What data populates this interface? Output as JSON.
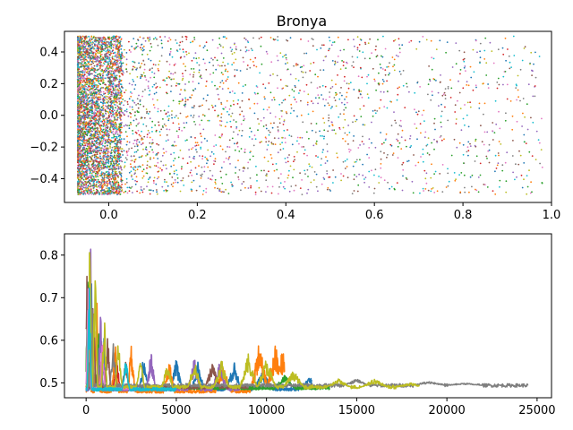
{
  "chart_data": [
    {
      "type": "scatter",
      "title": "Bronya",
      "xlabel": "",
      "ylabel": "",
      "xlim": [
        -0.1,
        1.0
      ],
      "ylim": [
        -0.55,
        0.53
      ],
      "xticks": [
        "0.0",
        "0.2",
        "0.4",
        "0.6",
        "0.8",
        "1.0"
      ],
      "xtick_values": [
        0.0,
        0.2,
        0.4,
        0.6,
        0.8,
        1.0
      ],
      "yticks": [
        "−0.4",
        "−0.2",
        "0.0",
        "0.2",
        "0.4"
      ],
      "ytick_values": [
        -0.4,
        -0.2,
        0.0,
        0.2,
        0.4
      ],
      "grid": false,
      "series_colors": [
        "#1f77b4",
        "#ff7f0e",
        "#2ca02c",
        "#d62728",
        "#9467bd",
        "#8c564b",
        "#e377c2",
        "#7f7f7f",
        "#bcbd22",
        "#17becf"
      ],
      "point_y_range": [
        -0.5,
        0.5
      ],
      "dense_band_x": [
        -0.07,
        0.03
      ],
      "max_x": 0.98,
      "approx_point_count": 6000
    },
    {
      "type": "line",
      "title": "",
      "xlabel": "",
      "ylabel": "",
      "xlim": [
        -1200,
        25800
      ],
      "ylim": [
        0.465,
        0.85
      ],
      "xticks": [
        "0",
        "5000",
        "10000",
        "15000",
        "20000",
        "25000"
      ],
      "xtick_values": [
        0,
        5000,
        10000,
        15000,
        20000,
        25000
      ],
      "yticks": [
        "0.5",
        "0.6",
        "0.7",
        "0.8"
      ],
      "ytick_values": [
        0.5,
        0.6,
        0.7,
        0.8
      ],
      "grid": false,
      "series": [
        {
          "color": "#1f77b4",
          "length": 12500,
          "baseline": 0.485,
          "spikes": [
            [
              300,
              0.78
            ],
            [
              1000,
              0.62
            ],
            [
              3200,
              0.57
            ],
            [
              5000,
              0.56
            ],
            [
              6200,
              0.55
            ],
            [
              8200,
              0.55
            ],
            [
              9800,
              0.53
            ],
            [
              12400,
              0.52
            ]
          ]
        },
        {
          "color": "#ff7f0e",
          "length": 11000,
          "baseline": 0.48,
          "spikes": [
            [
              150,
              0.82
            ],
            [
              600,
              0.7
            ],
            [
              1600,
              0.61
            ],
            [
              2500,
              0.59
            ],
            [
              4600,
              0.56
            ],
            [
              7600,
              0.55
            ],
            [
              9600,
              0.6
            ],
            [
              10500,
              0.59
            ],
            [
              10900,
              0.58
            ]
          ]
        },
        {
          "color": "#2ca02c",
          "length": 13500,
          "baseline": 0.488,
          "spikes": [
            [
              100,
              0.8
            ],
            [
              700,
              0.62
            ],
            [
              11000,
              0.52
            ]
          ]
        },
        {
          "color": "#d62728",
          "length": 4000,
          "baseline": 0.49,
          "spikes": [
            [
              200,
              0.79
            ],
            [
              1700,
              0.56
            ]
          ]
        },
        {
          "color": "#9467bd",
          "length": 8500,
          "baseline": 0.485,
          "spikes": [
            [
              250,
              0.84
            ],
            [
              800,
              0.7
            ],
            [
              3600,
              0.58
            ],
            [
              6000,
              0.56
            ],
            [
              7400,
              0.55
            ]
          ]
        },
        {
          "color": "#8c564b",
          "length": 9000,
          "baseline": 0.49,
          "spikes": [
            [
              50,
              0.83
            ],
            [
              400,
              0.72
            ],
            [
              1200,
              0.62
            ],
            [
              2200,
              0.56
            ],
            [
              7000,
              0.55
            ]
          ]
        },
        {
          "color": "#e377c2",
          "length": 3000,
          "baseline": 0.488,
          "spikes": [
            [
              120,
              0.76
            ],
            [
              900,
              0.61
            ]
          ]
        },
        {
          "color": "#7f7f7f",
          "length": 24500,
          "baseline": 0.494,
          "spikes": [
            [
              300,
              0.81
            ],
            [
              1500,
              0.6
            ],
            [
              15000,
              0.51
            ],
            [
              19000,
              0.505
            ],
            [
              21000,
              0.5
            ]
          ]
        },
        {
          "color": "#bcbd22",
          "length": 18500,
          "baseline": 0.49,
          "spikes": [
            [
              200,
              0.84
            ],
            [
              500,
              0.8
            ],
            [
              1000,
              0.68
            ],
            [
              1800,
              0.62
            ],
            [
              3000,
              0.57
            ],
            [
              4500,
              0.55
            ],
            [
              6000,
              0.56
            ],
            [
              7500,
              0.56
            ],
            [
              9000,
              0.57
            ],
            [
              10000,
              0.56
            ],
            [
              11500,
              0.53
            ],
            [
              14000,
              0.51
            ],
            [
              16000,
              0.51
            ],
            [
              18000,
              0.5
            ]
          ]
        },
        {
          "color": "#17becf",
          "length": 5000,
          "baseline": 0.485,
          "spikes": [
            [
              180,
              0.75
            ],
            [
              2200,
              0.57
            ]
          ]
        }
      ]
    }
  ]
}
